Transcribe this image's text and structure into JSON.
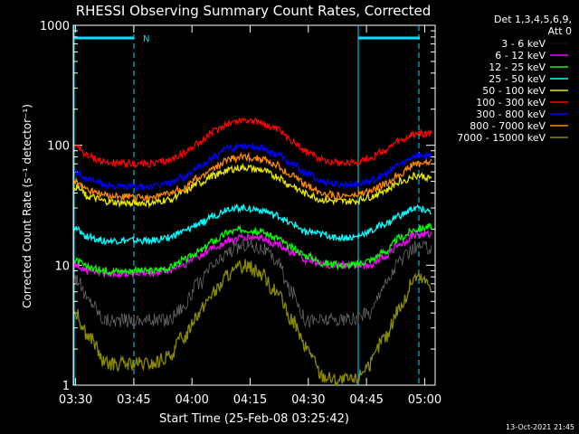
{
  "chart_data": {
    "type": "line",
    "title": "RHESSI Observing Summary Count Rates, Corrected",
    "xlabel": "Start Time (25-Feb-08 03:25:42)",
    "ylabel": "Corrected Count Rate (s⁻¹ detector⁻¹)",
    "yscale": "log",
    "ylim": [
      1,
      1000
    ],
    "xlim_minutes": [
      3.7,
      97.0
    ],
    "x_ticks": [
      {
        "label": "03:30",
        "minutes": 4.3
      },
      {
        "label": "03:45",
        "minutes": 19.3
      },
      {
        "label": "04:00",
        "minutes": 34.3
      },
      {
        "label": "04:15",
        "minutes": 49.3
      },
      {
        "label": "04:30",
        "minutes": 64.3
      },
      {
        "label": "04:45",
        "minutes": 79.3
      },
      {
        "label": "05:00",
        "minutes": 94.3
      }
    ],
    "y_ticks": [
      {
        "label": "1",
        "value": 1
      },
      {
        "label": "10",
        "value": 10
      },
      {
        "label": "100",
        "value": 100
      },
      {
        "label": "1000",
        "value": 1000
      }
    ],
    "legend_header": [
      "Det 1,3,4,5,6,9,",
      "Att 0"
    ],
    "legend_position": "right",
    "x_minutes": [
      4,
      8,
      12,
      16,
      20,
      24,
      28,
      32,
      36,
      40,
      44,
      48,
      52,
      56,
      60,
      64,
      68,
      72,
      76,
      80,
      84,
      88,
      92,
      96
    ],
    "series": [
      {
        "name": "3 - 6 keV",
        "color": "#000000",
        "values": [
          8,
          5,
          3.5,
          3.5,
          3.5,
          3.5,
          3.5,
          4.5,
          7,
          10,
          13,
          15,
          14,
          11,
          6,
          3.5,
          3.5,
          3.5,
          3.5,
          4,
          7,
          11,
          14,
          14
        ]
      },
      {
        "name": "6 - 12 keV",
        "color": "#ff00ff",
        "values": [
          10,
          9,
          8.5,
          8.5,
          8.5,
          8.5,
          9,
          10,
          12,
          14,
          16,
          17,
          17,
          15,
          13,
          11,
          10,
          10,
          10,
          10,
          12,
          15,
          18,
          18
        ]
      },
      {
        "name": "12 - 25 keV",
        "color": "#00ff00",
        "values": [
          11,
          9.5,
          9,
          9,
          9,
          9,
          9.5,
          11,
          13,
          16,
          19,
          20,
          19,
          17,
          14,
          12,
          10.5,
          10,
          10,
          11,
          13,
          17,
          20,
          21
        ]
      },
      {
        "name": "25 - 50 keV",
        "color": "#00ffff",
        "values": [
          20,
          17,
          16,
          16,
          16,
          16,
          17,
          19,
          22,
          26,
          30,
          30,
          29,
          26,
          22,
          19,
          18,
          17,
          17,
          19,
          22,
          26,
          30,
          28
        ]
      },
      {
        "name": "50 - 100 keV",
        "color": "#e8e800",
        "values": [
          45,
          37,
          34,
          33,
          33,
          33,
          35,
          40,
          48,
          56,
          63,
          65,
          62,
          55,
          46,
          39,
          35,
          34,
          34,
          37,
          42,
          50,
          56,
          54
        ]
      },
      {
        "name": "100 - 300 keV",
        "color": "#ff0000",
        "values": [
          100,
          80,
          72,
          70,
          70,
          70,
          74,
          85,
          105,
          130,
          155,
          163,
          155,
          135,
          110,
          88,
          76,
          72,
          72,
          78,
          90,
          108,
          125,
          125
        ]
      },
      {
        "name": "300 - 800 keV",
        "color": "#0000ff",
        "values": [
          60,
          52,
          47,
          45,
          45,
          45,
          48,
          54,
          65,
          80,
          95,
          100,
          96,
          85,
          70,
          58,
          50,
          47,
          47,
          50,
          57,
          70,
          82,
          82
        ]
      },
      {
        "name": "800 - 7000 keV",
        "color": "#ff8800",
        "values": [
          50,
          42,
          38,
          37,
          37,
          37,
          39,
          44,
          53,
          65,
          77,
          80,
          77,
          68,
          56,
          46,
          40,
          38,
          38,
          41,
          47,
          58,
          70,
          72
        ]
      },
      {
        "name": "7000 - 15000 keV",
        "color": "#8a8a00",
        "values": [
          4,
          2.5,
          1.5,
          1.5,
          1.5,
          1.5,
          1.7,
          2.5,
          4,
          6,
          8.5,
          10,
          8.5,
          6,
          3.5,
          2,
          1.2,
          1.1,
          1.1,
          1.5,
          2.5,
          4.5,
          8,
          7
        ]
      }
    ],
    "annotations": {
      "saa_bar_label": "N",
      "footer_date": "13-Oct-2021 21:45"
    }
  }
}
